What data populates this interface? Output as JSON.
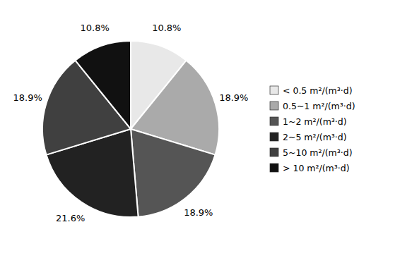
{
  "chart_data": {
    "type": "pie",
    "categories": [
      "< 0.5 m²/(m³·d)",
      "0.5~1 m²/(m³·d)",
      "1~2 m²/(m³·d)",
      "2~5 m²/(m³·d)",
      "5~10 m²/(m³·d)",
      "> 10 m²/(m³·d)"
    ],
    "values": [
      10.8,
      18.9,
      18.9,
      21.6,
      18.9,
      10.8
    ],
    "value_labels": [
      "10.8%",
      "18.9%",
      "18.9%",
      "21.6%",
      "18.9%",
      "10.8%"
    ],
    "colors": [
      "#e8e8e8",
      "#aaaaaa",
      "#555555",
      "#222222",
      "#404040",
      "#111111"
    ],
    "data_labels": true,
    "legend": "right"
  }
}
